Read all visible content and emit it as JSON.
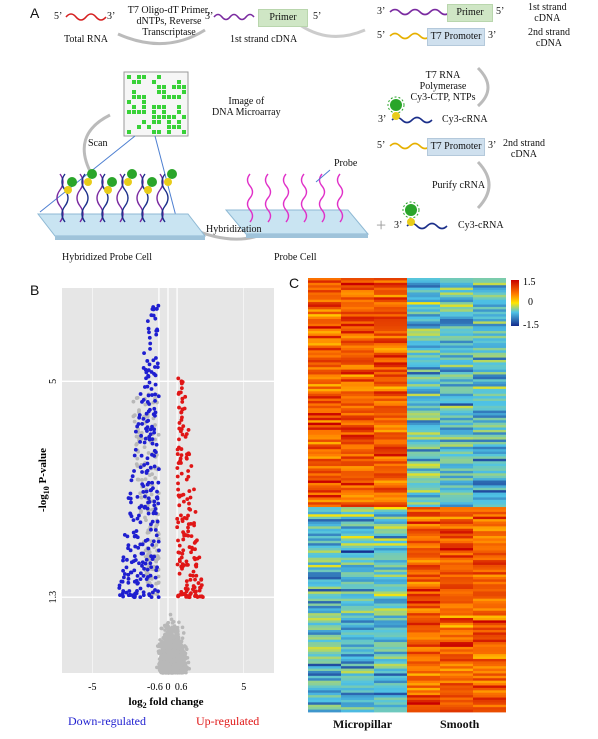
{
  "panel_a": {
    "letter": "A",
    "total_rna_label": "Total RNA",
    "rt_step_label": [
      "T7 Oligo-dT Primer,",
      "dNTPs, Reverse",
      "Transcriptase"
    ],
    "first_strand_label": "1st strand cDNA",
    "primer_label": "Primer",
    "t7_promoter_label": "T7 Promoter",
    "strand1_label": [
      "1st strand",
      "cDNA"
    ],
    "strand2_label": [
      "2nd strand",
      "cDNA"
    ],
    "ivt_label": [
      "T7 RNA Polymerase",
      "Cy3-CTP, NTPs"
    ],
    "cy3_crna_label": "Cy3-cRNA",
    "purify_label": "Purify cRNA",
    "image_label": [
      "Image of",
      "DNA Microarray"
    ],
    "scan_label": "Scan",
    "probe_label": "Probe",
    "hybridization_label": "Hybridization",
    "hybridized_cell_label": "Hybridized Probe Cell",
    "probe_cell_label": "Probe Cell",
    "prime_5": "5’",
    "prime_3": "3’",
    "plus": "+"
  },
  "panel_b": {
    "letter": "B",
    "legend_down": "Down-regulated",
    "legend_up": "Up-regulated",
    "colors": {
      "down": "#1f1fd0",
      "up": "#e01616",
      "ns": "#b8b8b8",
      "bg": "#e6e6e6"
    }
  },
  "panel_c": {
    "letter": "C",
    "group_labels": [
      "Micropillar",
      "Smooth"
    ],
    "colorbar_ticks": [
      "1.5",
      "0",
      "-1.5"
    ]
  },
  "chart_data": [
    {
      "type": "scatter",
      "title": "",
      "xlabel": "log2 fold change",
      "ylabel": "-log10 P-value",
      "x_ticks": [
        "-5",
        "-0.6",
        "0",
        "0.6",
        "5"
      ],
      "y_ticks": [
        "1.3",
        "5"
      ],
      "xlim": [
        -7,
        7
      ],
      "ylim": [
        0,
        6.6
      ],
      "thresholds": {
        "fold_change": [
          -0.6,
          0.6
        ],
        "p_value": 1.3
      },
      "series": [
        {
          "name": "Down-regulated",
          "approx_x_range": [
            -3.8,
            -0.6
          ],
          "approx_y_range": [
            1.3,
            6.3
          ]
        },
        {
          "name": "Up-regulated",
          "approx_x_range": [
            0.6,
            2.3
          ],
          "approx_y_range": [
            1.3,
            5.1
          ]
        }
      ]
    },
    {
      "type": "heatmap",
      "columns": [
        "Micropillar",
        "Micropillar",
        "Micropillar",
        "Smooth",
        "Smooth",
        "Smooth"
      ],
      "color_range": [
        -1.5,
        1.5
      ],
      "row_clusters": [
        "up in Micropillar",
        "up in Smooth"
      ]
    }
  ]
}
